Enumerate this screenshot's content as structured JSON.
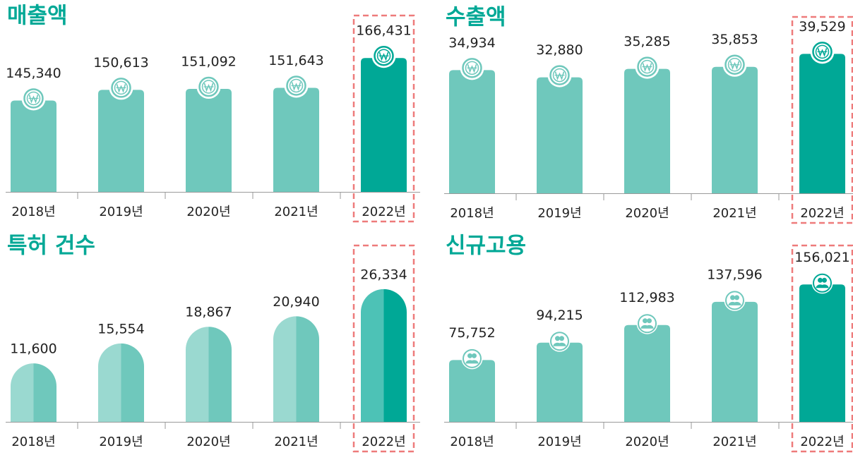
{
  "chart_data": [
    {
      "type": "bar",
      "title": "매출액",
      "icon": "coin",
      "categories": [
        "2018년",
        "2019년",
        "2020년",
        "2021년",
        "2022년"
      ],
      "values": [
        145340,
        150613,
        151092,
        151643,
        166431
      ],
      "value_labels": [
        "145,340",
        "150,613",
        "151,092",
        "151,643",
        "166,431"
      ],
      "colors": [
        "#6fc8bc",
        "#6fc8bc",
        "#6fc8bc",
        "#6fc8bc",
        "#00a896"
      ],
      "ylim": [
        100000,
        170000
      ]
    },
    {
      "type": "bar",
      "title": "수출액",
      "icon": "coin",
      "categories": [
        "2018년",
        "2019년",
        "2020년",
        "2021년",
        "2022년"
      ],
      "values": [
        34934,
        32880,
        35285,
        35853,
        39529
      ],
      "value_labels": [
        "34,934",
        "32,880",
        "35,285",
        "35,853",
        "39,529"
      ],
      "colors": [
        "#6fc8bc",
        "#6fc8bc",
        "#6fc8bc",
        "#6fc8bc",
        "#00a896"
      ],
      "ylim": [
        0,
        40000
      ]
    },
    {
      "type": "bar",
      "title": "특허 건수",
      "rounded": true,
      "categories": [
        "2018년",
        "2019년",
        "2020년",
        "2021년",
        "2022년"
      ],
      "values": [
        11600,
        15554,
        18867,
        20940,
        26334
      ],
      "value_labels": [
        "11,600",
        "15,554",
        "18,867",
        "20,940",
        "26,334"
      ],
      "colors": [
        "#6fc8bc",
        "#6fc8bc",
        "#6fc8bc",
        "#6fc8bc",
        "#00a896"
      ],
      "ylim": [
        0,
        28000
      ]
    },
    {
      "type": "bar",
      "title": "신규고용",
      "icon": "people",
      "categories": [
        "2018년",
        "2019년",
        "2020년",
        "2021년",
        "2022년"
      ],
      "values": [
        75752,
        94215,
        112983,
        137596,
        156021
      ],
      "value_labels": [
        "75,752",
        "94,215",
        "112,983",
        "137,596",
        "156,021"
      ],
      "colors": [
        "#6fc8bc",
        "#6fc8bc",
        "#6fc8bc",
        "#6fc8bc",
        "#00a896"
      ],
      "ylim": [
        10000,
        160000
      ]
    }
  ]
}
